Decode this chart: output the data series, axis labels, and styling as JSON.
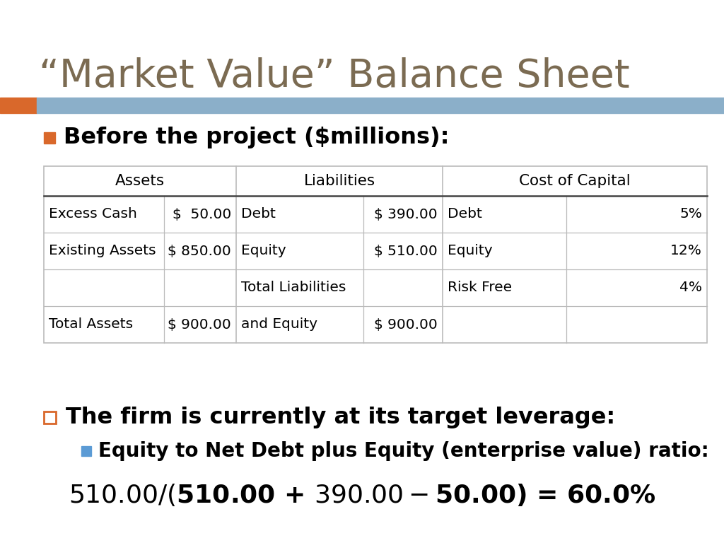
{
  "title": "“Market Value” Balance Sheet",
  "title_color": "#7B6B52",
  "title_fontsize": 40,
  "accent_bar_orange": "#D9682B",
  "accent_bar_blue": "#8BAFC9",
  "subtitle": "Before the project ($millions):",
  "subtitle_fontsize": 23,
  "bullet_color_orange": "#D9682B",
  "bullet_color_blue": "#5B9BD5",
  "table_data": [
    [
      "Excess Cash",
      "$  50.00",
      "Debt",
      "$ 390.00",
      "Debt",
      "5%"
    ],
    [
      "Existing Assets",
      "$ 850.00",
      "Equity",
      "$ 510.00",
      "Equity",
      "12%"
    ],
    [
      "",
      "",
      "Total Liabilities",
      "",
      "Risk Free",
      "4%"
    ],
    [
      "Total Assets",
      "$ 900.00",
      "and Equity",
      "$ 900.00",
      "",
      ""
    ]
  ],
  "table_font_size": 14.5,
  "bullet1_text": "The firm is currently at its target leverage:",
  "bullet1_fontsize": 23,
  "bullet2_text": "Equity to Net Debt plus Equity (enterprise value) ratio:",
  "bullet2_fontsize": 20,
  "formula_text": "$510.00/($510.00 + $390.00 - $50.00) = 60.0%",
  "formula_fontsize": 26,
  "bg_color": "#FFFFFF",
  "text_color": "#000000",
  "grid_color": "#BBBBBB",
  "header_line_color": "#444444"
}
